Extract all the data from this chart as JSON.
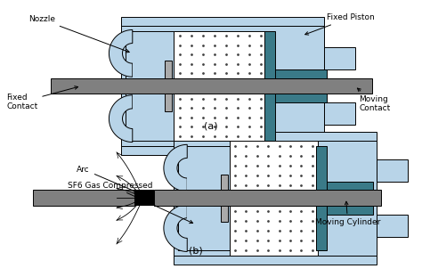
{
  "bg_color": "#ffffff",
  "light_blue": "#b8d4e8",
  "teal": "#3a7a88",
  "gray": "#808080",
  "light_gray": "#aaaaaa",
  "black": "#000000",
  "white": "#ffffff",
  "dot_color": "#444444",
  "label_fontsize": 6.5,
  "title_a": "(a)",
  "title_b": "(b)",
  "labels": {
    "nozzle": "Nozzle",
    "fixed_piston": "Fixed Piston",
    "fixed_contact": "Fixed\nContact",
    "moving_contact": "Moving\nContact",
    "arc": "Arc",
    "sf6": "SF6 Gas Compressed",
    "moving_cylinder": "Moving Cylinder"
  }
}
